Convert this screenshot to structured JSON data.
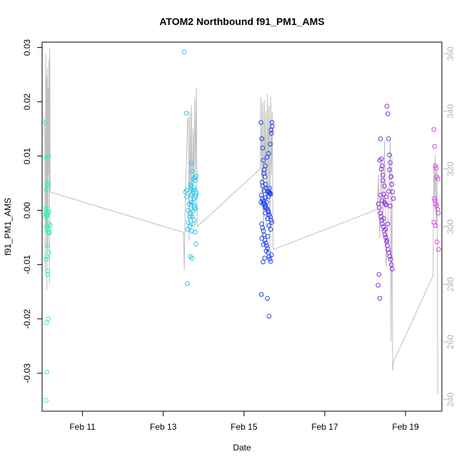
{
  "chart_data": {
    "type": "scatter",
    "title": "ATOM2 Northbound f91_PM1_AMS",
    "xlabel": "Date",
    "ylabel": "f91_PM1_AMS",
    "x_unit": "days since Feb 10 00:00",
    "xlim": [
      0.0,
      9.9
    ],
    "ylim": [
      -0.037,
      0.031
    ],
    "y2lim": [
      236,
      364
    ],
    "x_ticks": [
      {
        "value": 1,
        "label": "Feb 11"
      },
      {
        "value": 3,
        "label": "Feb 13"
      },
      {
        "value": 5,
        "label": "Feb 15"
      },
      {
        "value": 7,
        "label": "Feb 17"
      },
      {
        "value": 9,
        "label": "Feb 19"
      }
    ],
    "y_ticks": [
      {
        "value": -0.03,
        "label": "-0.03"
      },
      {
        "value": -0.02,
        "label": "-0.02"
      },
      {
        "value": -0.01,
        "label": "-0.01"
      },
      {
        "value": 0.0,
        "label": "0.00"
      },
      {
        "value": 0.01,
        "label": "0.01"
      },
      {
        "value": 0.02,
        "label": "0.02"
      },
      {
        "value": 0.03,
        "label": "0.03"
      }
    ],
    "y2_ticks": [
      {
        "value": 240,
        "label": "240"
      },
      {
        "value": 260,
        "label": "260"
      },
      {
        "value": 280,
        "label": "280"
      },
      {
        "value": 300,
        "label": "300"
      },
      {
        "value": 320,
        "label": "320"
      },
      {
        "value": 340,
        "label": "340"
      },
      {
        "value": 360,
        "label": "360"
      }
    ],
    "colors": {
      "line": "#bebebe",
      "right_axis": "#b3b3b3",
      "group1": "#33f5b0",
      "group2": "#1fc9f0",
      "group3": "#2040f0",
      "group4": "#8a2be2",
      "group5": "#e040e8"
    },
    "series": [
      {
        "name": "",
        "color_key": "group1",
        "x": [
          0.08,
          0.1,
          0.1,
          0.09,
          0.11,
          0.12,
          0.13,
          0.14,
          0.12,
          0.15,
          0.16,
          0.15,
          0.18,
          0.2,
          0.08,
          0.09,
          0.11,
          0.13,
          0.15,
          0.1,
          0.12,
          0.14,
          0.16,
          0.17,
          0.13,
          0.14,
          0.15,
          0.11,
          0.12,
          0.17,
          0.1,
          0.14,
          0.18,
          0.12,
          0.15
        ],
        "y": [
          0.0162,
          0.0097,
          0.0038,
          0.0003,
          -0.0008,
          -0.001,
          -0.0002,
          0.005,
          0.0048,
          0.0046,
          0.01,
          0.0099,
          -0.0025,
          -0.0028,
          -0.0012,
          -0.0005,
          -0.003,
          -0.0035,
          -0.004,
          -0.009,
          -0.0085,
          -0.0065,
          -0.0078,
          -0.0042,
          -0.0118,
          -0.0112,
          -0.02,
          -0.0207,
          -0.0298,
          -0.0003,
          -0.035,
          0.0003,
          -0.004,
          -0.0006,
          -0.0033
        ]
      },
      {
        "name": "",
        "color_key": "group2",
        "x": [
          3.52,
          3.57,
          3.55,
          3.6,
          3.62,
          3.65,
          3.58,
          3.7,
          3.72,
          3.75,
          3.68,
          3.78,
          3.8,
          3.82,
          3.77,
          3.72,
          3.74,
          3.76,
          3.79,
          3.81,
          3.7,
          3.66,
          3.64,
          3.69,
          3.73,
          3.78,
          3.8,
          3.76,
          3.74,
          3.72,
          3.71,
          3.79,
          3.81,
          3.67,
          3.6,
          3.58,
          3.62,
          3.69,
          3.75,
          3.78,
          3.82,
          3.71,
          3.65,
          3.7,
          3.76
        ],
        "y": [
          0.0292,
          0.0179,
          0.0034,
          -0.0035,
          -0.0022,
          -0.003,
          0.0025,
          0.0087,
          0.0072,
          0.0058,
          0.0045,
          0.006,
          0.0055,
          0.0063,
          0.0038,
          0.0038,
          0.0035,
          0.0022,
          0.0025,
          0.0028,
          0.0015,
          -0.0005,
          0.0012,
          0.001,
          -0.0002,
          0.0005,
          0.0002,
          -0.0018,
          -0.0025,
          -0.0012,
          -0.0038,
          -0.004,
          -0.0062,
          -0.0085,
          -0.0135,
          0.0037,
          0.0,
          0.0048,
          0.0015,
          0.0008,
          0.0032,
          -0.0088,
          -0.0012,
          0.0028,
          0.0042
        ]
      },
      {
        "name": "",
        "color_key": "group3",
        "x": [
          5.42,
          5.44,
          5.46,
          5.48,
          5.5,
          5.52,
          5.54,
          5.56,
          5.58,
          5.6,
          5.62,
          5.64,
          5.66,
          5.68,
          5.7,
          5.43,
          5.45,
          5.47,
          5.49,
          5.51,
          5.53,
          5.55,
          5.57,
          5.59,
          5.61,
          5.63,
          5.65,
          5.67,
          5.69,
          5.44,
          5.46,
          5.48,
          5.5,
          5.52,
          5.54,
          5.56,
          5.58,
          5.6,
          5.62,
          5.64,
          5.66,
          5.68,
          5.43,
          5.47,
          5.51,
          5.55,
          5.59,
          5.63,
          5.67,
          5.45,
          5.49,
          5.53,
          5.57,
          5.61,
          5.65,
          5.69,
          5.46,
          5.5,
          5.54,
          5.58,
          5.62,
          5.66,
          5.44,
          5.48,
          5.52,
          5.56,
          5.6,
          5.64,
          5.42,
          5.58,
          5.62,
          5.47,
          5.53
        ],
        "y": [
          0.0162,
          0.0132,
          0.0115,
          0.0092,
          0.0075,
          0.0062,
          0.0048,
          0.004,
          0.0035,
          0.0034,
          0.0032,
          0.0031,
          0.003,
          0.0142,
          0.0155,
          0.0028,
          0.0022,
          0.0018,
          0.0015,
          0.0012,
          0.0008,
          0.0005,
          0.0003,
          0.0,
          -0.0003,
          -0.0008,
          -0.0012,
          -0.0018,
          -0.0022,
          -0.0025,
          -0.0032,
          -0.0038,
          -0.0045,
          -0.0055,
          -0.006,
          -0.0065,
          -0.007,
          -0.0078,
          -0.0085,
          -0.009,
          -0.0094,
          -0.0082,
          -0.0155,
          -0.0095,
          -0.0088,
          -0.0075,
          -0.0048,
          0.0041,
          0.0148,
          0.0052,
          0.0068,
          0.0082,
          0.0098,
          0.0105,
          0.0122,
          0.0162,
          0.0045,
          0.0036,
          0.0024,
          -0.0015,
          -0.0028,
          -0.0035,
          -0.0052,
          -0.0063,
          0.0005,
          0.0015,
          0.0025,
          0.0033,
          0.0015,
          -0.0162,
          -0.0195,
          0.0012,
          -0.0005
        ]
      },
      {
        "name": "",
        "color_key": "group4",
        "x": [
          8.32,
          8.34,
          8.36,
          8.38,
          8.4,
          8.42,
          8.44,
          8.46,
          8.48,
          8.5,
          8.52,
          8.54,
          8.56,
          8.58,
          8.6,
          8.62,
          8.64,
          8.66,
          8.68,
          8.7,
          8.33,
          8.35,
          8.37,
          8.39,
          8.41,
          8.43,
          8.45,
          8.47,
          8.49,
          8.51,
          8.53,
          8.55,
          8.57,
          8.59,
          8.61,
          8.63,
          8.65,
          8.67,
          8.36,
          8.4,
          8.44,
          8.48,
          8.52,
          8.56,
          8.6,
          8.64,
          8.38,
          8.42,
          8.46,
          8.5,
          8.54,
          8.58,
          8.62
        ],
        "y": [
          -0.0138,
          -0.0118,
          -0.0162,
          0.0132,
          0.0095,
          0.0082,
          0.0055,
          0.003,
          0.0015,
          0.0012,
          0.001,
          0.0192,
          0.0178,
          0.0132,
          0.0102,
          0.0088,
          0.0062,
          0.0048,
          0.0034,
          0.0022,
          0.0012,
          0.0005,
          -0.0005,
          -0.0012,
          -0.0018,
          -0.0025,
          -0.003,
          -0.0038,
          -0.0045,
          -0.005,
          -0.0058,
          -0.0065,
          -0.0072,
          -0.0078,
          -0.0085,
          -0.009,
          -0.01,
          -0.0108,
          0.0092,
          0.0076,
          0.0065,
          0.0045,
          0.0025,
          -0.0025,
          0.0075,
          0.0062,
          0.0028,
          0.0018,
          -0.0015,
          -0.0035,
          -0.0055,
          0.0035,
          0.0008
        ]
      },
      {
        "name": "",
        "color_key": "group5",
        "x": [
          9.7,
          9.72,
          9.74,
          9.76,
          9.78,
          9.8,
          9.71,
          9.73,
          9.75,
          9.77,
          9.79,
          9.81,
          9.7,
          9.74,
          9.78,
          9.82
        ],
        "y": [
          0.0149,
          0.0118,
          0.0082,
          0.0078,
          0.0062,
          0.0058,
          0.0022,
          0.0018,
          0.0012,
          0.0008,
          0.0002,
          -0.0005,
          -0.0022,
          -0.0028,
          -0.0058,
          -0.0072
        ]
      }
    ],
    "line_series": {
      "name": "",
      "axis": "right",
      "segments": [
        {
          "x": [
            0.05,
            0.07,
            0.08,
            0.09,
            0.1,
            0.11,
            0.12,
            0.13,
            0.14,
            0.15,
            0.16,
            0.17,
            0.18,
            0.19,
            0.2
          ],
          "y": [
            338,
            330,
            285,
            360,
            300,
            352,
            278,
            355,
            292,
            348,
            318,
            358,
            280,
            362,
            312
          ]
        },
        {
          "x": [
            0.2,
            3.5
          ],
          "y": [
            312,
            298
          ]
        },
        {
          "x": [
            3.5,
            3.52,
            3.55,
            3.58,
            3.6,
            3.62,
            3.64,
            3.66,
            3.68,
            3.7,
            3.72,
            3.74,
            3.76,
            3.78,
            3.8,
            3.82,
            3.84
          ],
          "y": [
            298,
            285,
            312,
            325,
            336,
            338,
            295,
            340,
            310,
            342,
            300,
            334,
            315,
            345,
            318,
            348,
            300
          ]
        },
        {
          "x": [
            3.84,
            5.4
          ],
          "y": [
            300,
            320
          ]
        },
        {
          "x": [
            5.4,
            5.42,
            5.44,
            5.46,
            5.48,
            5.5,
            5.52,
            5.54,
            5.56,
            5.58,
            5.6,
            5.62,
            5.64,
            5.66,
            5.68,
            5.7,
            5.72
          ],
          "y": [
            320,
            345,
            312,
            343,
            295,
            344,
            318,
            340,
            300,
            346,
            315,
            342,
            292,
            345,
            318,
            340,
            292
          ]
        },
        {
          "x": [
            5.72,
            8.3
          ],
          "y": [
            292,
            306
          ]
        },
        {
          "x": [
            8.3,
            8.33,
            8.36,
            8.4,
            8.44,
            8.48,
            8.52,
            8.56,
            8.6,
            8.62,
            8.64,
            8.66,
            8.68,
            8.7
          ],
          "y": [
            306,
            318,
            296,
            322,
            300,
            330,
            286,
            300,
            318,
            330,
            260,
            325,
            250,
            253
          ]
        },
        {
          "x": [
            8.7,
            9.68
          ],
          "y": [
            253,
            283
          ]
        },
        {
          "x": [
            9.68,
            9.7,
            9.72,
            9.74,
            9.76,
            9.78,
            9.8
          ],
          "y": [
            283,
            322,
            310,
            325,
            300,
            320,
            242
          ]
        }
      ]
    }
  }
}
